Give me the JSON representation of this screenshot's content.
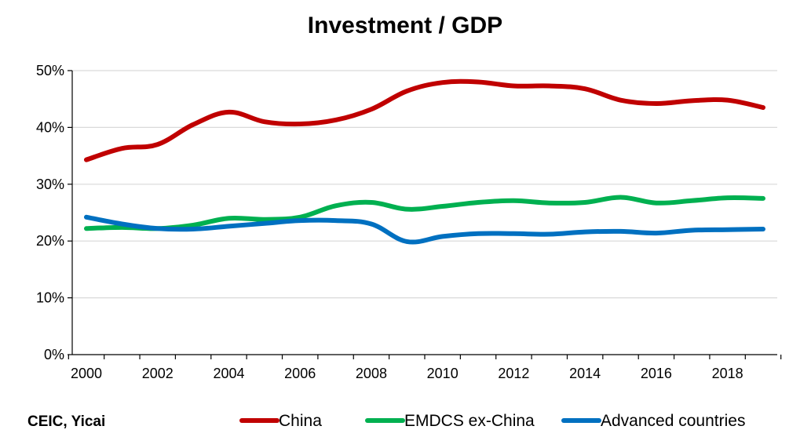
{
  "chart_data": {
    "type": "line",
    "title": "Investment / GDP",
    "source": "CEIC, Yicai",
    "x": [
      2000,
      2001,
      2002,
      2003,
      2004,
      2005,
      2006,
      2007,
      2008,
      2009,
      2010,
      2011,
      2012,
      2013,
      2014,
      2015,
      2016,
      2017,
      2018,
      2019
    ],
    "x_tick_labels": [
      "2000",
      "2002",
      "2004",
      "2006",
      "2008",
      "2010",
      "2012",
      "2014",
      "2016",
      "2018"
    ],
    "y_tick_labels": [
      "0%",
      "10%",
      "20%",
      "30%",
      "40%",
      "50%"
    ],
    "ylim": [
      0,
      50
    ],
    "y_unit": "%",
    "grid": "horizontal",
    "legend_position": "bottom",
    "series": [
      {
        "name": "China",
        "color": "#c00000",
        "values": [
          34.3,
          36.3,
          37.0,
          40.5,
          42.7,
          41.0,
          40.6,
          41.3,
          43.2,
          46.4,
          47.9,
          48.0,
          47.3,
          47.3,
          46.8,
          44.8,
          44.2,
          44.7,
          44.8,
          43.5
        ]
      },
      {
        "name": "EMDCS ex-China",
        "color": "#00b050",
        "values": [
          22.2,
          22.4,
          22.2,
          22.8,
          24.0,
          23.8,
          24.2,
          26.2,
          26.8,
          25.6,
          26.1,
          26.8,
          27.1,
          26.7,
          26.8,
          27.7,
          26.7,
          27.1,
          27.6,
          27.5
        ]
      },
      {
        "name": "Advanced countries",
        "color": "#0070c0",
        "values": [
          24.2,
          23.0,
          22.2,
          22.1,
          22.6,
          23.1,
          23.6,
          23.6,
          23.0,
          19.9,
          20.8,
          21.3,
          21.3,
          21.2,
          21.6,
          21.7,
          21.4,
          21.9,
          22.0,
          22.1
        ]
      }
    ]
  }
}
